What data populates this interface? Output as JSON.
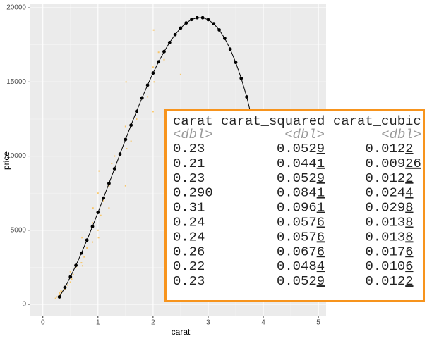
{
  "chart_data": {
    "type": "scatter",
    "x_label": "carat",
    "y_label": "price",
    "xlim": [
      -0.24,
      5.14
    ],
    "ylim": [
      -760,
      20290
    ],
    "xticks": [
      0,
      1,
      2,
      3,
      4,
      5
    ],
    "yticks": [
      0,
      5000,
      10000,
      15000,
      20000
    ],
    "grid": true,
    "series": [
      {
        "type": "scatter",
        "color": "#FFA500",
        "x": [
          0.23,
          0.25,
          0.3,
          0.3,
          0.31,
          0.33,
          0.35,
          0.4,
          0.41,
          0.45,
          0.5,
          0.5,
          0.52,
          0.55,
          0.6,
          0.7,
          0.7,
          0.71,
          0.72,
          0.75,
          0.8,
          0.9,
          0.9,
          0.91,
          1.0,
          1.0,
          1.01,
          1.02,
          1.05,
          1.1,
          1.2,
          1.2,
          1.25,
          1.3,
          1.5,
          1.5,
          1.51,
          1.52,
          1.6,
          1.7,
          1.9,
          2.0,
          2.0,
          2.01,
          2.02,
          2.1,
          2.2,
          2.5
        ],
        "values": [
          400,
          500,
          600,
          800,
          700,
          900,
          850,
          1000,
          1200,
          1300,
          1500,
          2200,
          1700,
          2000,
          2500,
          2800,
          3500,
          4500,
          2600,
          3200,
          3800,
          4200,
          5500,
          6500,
          5000,
          7500,
          4500,
          9000,
          6000,
          7000,
          8000,
          6500,
          9500,
          10000,
          8000,
          12000,
          15000,
          10500,
          11000,
          12500,
          14000,
          13000,
          16000,
          18500,
          15000,
          17000,
          16500,
          15500
        ]
      },
      {
        "type": "line",
        "color": "#000000",
        "x": [
          0.3,
          0.4,
          0.5,
          0.6,
          0.7,
          0.8,
          0.9,
          1.0,
          1.1,
          1.2,
          1.3,
          1.4,
          1.5,
          1.6,
          1.7,
          1.8,
          1.9,
          2.0,
          2.1,
          2.2,
          2.3,
          2.4,
          2.5,
          2.6,
          2.7,
          2.8,
          2.9,
          3.0,
          3.1,
          3.2,
          3.3,
          3.4,
          3.5,
          3.6,
          3.7,
          3.8,
          3.9
        ],
        "values": [
          500,
          1141,
          1853,
          2628,
          3458,
          4336,
          5252,
          6200,
          7170,
          8156,
          9148,
          10138,
          11120,
          12083,
          13021,
          13925,
          14788,
          15600,
          16354,
          17043,
          17658,
          18189,
          18630,
          18974,
          19210,
          19332,
          19331,
          19200,
          18929,
          18512,
          17942,
          17211,
          16314,
          15243,
          13993,
          12469,
          10796
        ]
      }
    ]
  },
  "table": {
    "columns": [
      "carat",
      "carat_squared",
      "carat_cubic"
    ],
    "types": [
      "<dbl>",
      "<dbl>",
      "<dbl>"
    ],
    "rows": [
      [
        "0.23",
        "0.0529",
        "0.0122"
      ],
      [
        "0.21",
        "0.0441",
        "0.00926"
      ],
      [
        "0.23",
        "0.0529",
        "0.0122"
      ],
      [
        "0.290",
        "0.0841",
        "0.0244"
      ],
      [
        "0.31",
        "0.0961",
        "0.0298"
      ],
      [
        "0.24",
        "0.0576",
        "0.0138"
      ],
      [
        "0.24",
        "0.0576",
        "0.0138"
      ],
      [
        "0.26",
        "0.0676",
        "0.0176"
      ],
      [
        "0.22",
        "0.0484",
        "0.0106"
      ],
      [
        "0.23",
        "0.0529",
        "0.0122"
      ]
    ]
  }
}
